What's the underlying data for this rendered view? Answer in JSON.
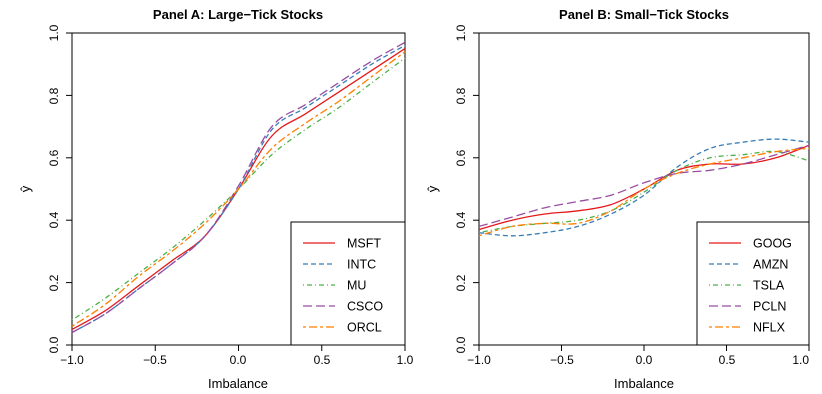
{
  "chart_data": [
    {
      "type": "line",
      "title": "Panel A: Large−Tick Stocks",
      "xlabel": "Imbalance",
      "ylabel": "ŷ",
      "xlim": [
        -1.0,
        1.0
      ],
      "ylim": [
        0.0,
        1.0
      ],
      "xticks": [
        "−1.0",
        "−0.5",
        "0.0",
        "0.5",
        "1.0"
      ],
      "yticks": [
        "0.0",
        "0.2",
        "0.4",
        "0.6",
        "0.8",
        "1.0"
      ],
      "grid": false,
      "legend_position": "bottom-right",
      "x": [
        -1.0,
        -0.8,
        -0.6,
        -0.4,
        -0.2,
        0.0,
        0.2,
        0.4,
        0.6,
        0.8,
        1.0
      ],
      "series": [
        {
          "name": "MSFT",
          "color": "#E41A1C",
          "dash": "solid",
          "values": [
            0.05,
            0.11,
            0.19,
            0.27,
            0.35,
            0.5,
            0.67,
            0.74,
            0.81,
            0.88,
            0.95
          ]
        },
        {
          "name": "INTC",
          "color": "#377EB8",
          "dash": "dashed",
          "values": [
            0.04,
            0.1,
            0.18,
            0.26,
            0.35,
            0.5,
            0.69,
            0.76,
            0.83,
            0.9,
            0.96
          ]
        },
        {
          "name": "MU",
          "color": "#4DAF4A",
          "dash": "dotdash",
          "values": [
            0.08,
            0.15,
            0.23,
            0.31,
            0.4,
            0.5,
            0.61,
            0.69,
            0.76,
            0.84,
            0.92
          ]
        },
        {
          "name": "CSCO",
          "color": "#984EA3",
          "dash": "longdash",
          "values": [
            0.04,
            0.1,
            0.18,
            0.26,
            0.35,
            0.51,
            0.7,
            0.77,
            0.84,
            0.91,
            0.97
          ]
        },
        {
          "name": "ORCL",
          "color": "#FF7F00",
          "dash": "twodash",
          "values": [
            0.06,
            0.13,
            0.22,
            0.3,
            0.39,
            0.5,
            0.63,
            0.71,
            0.78,
            0.86,
            0.94
          ]
        }
      ]
    },
    {
      "type": "line",
      "title": "Panel B: Small−Tick Stocks",
      "xlabel": "Imbalance",
      "ylabel": "ŷ",
      "xlim": [
        -1.0,
        1.0
      ],
      "ylim": [
        0.0,
        1.0
      ],
      "xticks": [
        "−1.0",
        "−0.5",
        "0.0",
        "0.5",
        "1.0"
      ],
      "yticks": [
        "0.0",
        "0.2",
        "0.4",
        "0.6",
        "0.8",
        "1.0"
      ],
      "grid": false,
      "legend_position": "bottom-right",
      "x": [
        -1.0,
        -0.8,
        -0.6,
        -0.4,
        -0.2,
        0.0,
        0.2,
        0.4,
        0.6,
        0.8,
        1.0
      ],
      "series": [
        {
          "name": "GOOG",
          "color": "#E41A1C",
          "dash": "solid",
          "values": [
            0.37,
            0.4,
            0.42,
            0.43,
            0.45,
            0.5,
            0.56,
            0.58,
            0.58,
            0.6,
            0.64
          ]
        },
        {
          "name": "AMZN",
          "color": "#377EB8",
          "dash": "dashed",
          "values": [
            0.36,
            0.35,
            0.36,
            0.38,
            0.42,
            0.48,
            0.57,
            0.63,
            0.65,
            0.66,
            0.65
          ]
        },
        {
          "name": "TSLA",
          "color": "#4DAF4A",
          "dash": "dotdash",
          "values": [
            0.36,
            0.38,
            0.39,
            0.4,
            0.43,
            0.49,
            0.56,
            0.6,
            0.61,
            0.62,
            0.59
          ]
        },
        {
          "name": "PCLN",
          "color": "#984EA3",
          "dash": "longdash",
          "values": [
            0.38,
            0.41,
            0.44,
            0.46,
            0.48,
            0.52,
            0.55,
            0.56,
            0.58,
            0.61,
            0.64
          ]
        },
        {
          "name": "NFLX",
          "color": "#FF7F00",
          "dash": "twodash",
          "values": [
            0.35,
            0.38,
            0.39,
            0.39,
            0.43,
            0.5,
            0.55,
            0.58,
            0.6,
            0.62,
            0.63
          ]
        }
      ]
    }
  ]
}
